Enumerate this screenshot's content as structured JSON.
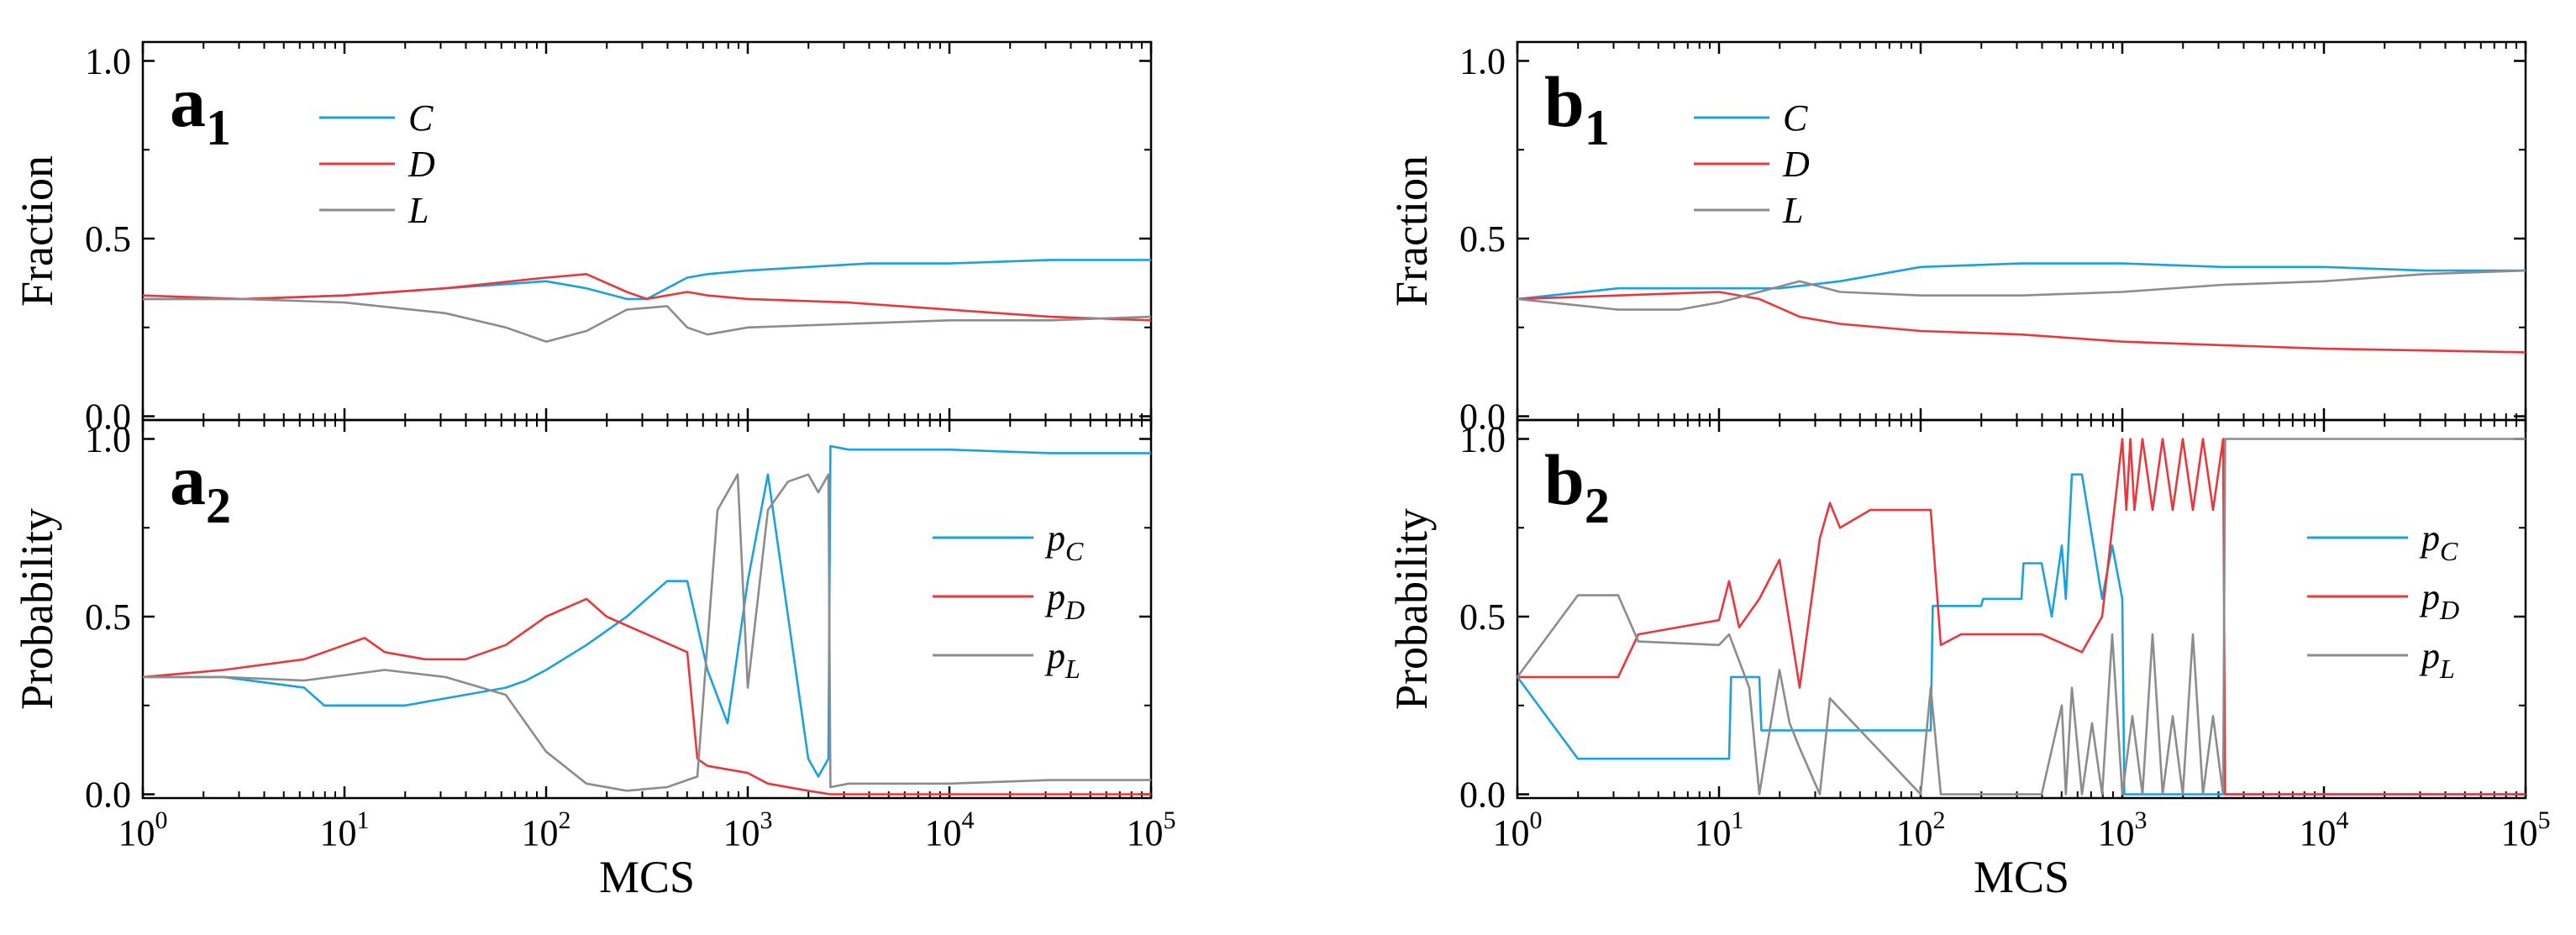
{
  "colors": {
    "C": "#1ba1e2",
    "D": "#e8383d",
    "L": "#8c8c8c"
  },
  "chart_data": [
    {
      "id": "a1",
      "type": "line",
      "panel_label": "a",
      "panel_sub": "1",
      "ylabel": "Fraction",
      "xlabel": "",
      "xscale": "log10",
      "xlim_exp": [
        0,
        5
      ],
      "ylim": [
        0,
        1
      ],
      "yticks": [
        "0.0",
        "0.5",
        "1.0"
      ],
      "legend": "top-left",
      "series": [
        {
          "key": "C",
          "name": "C",
          "x_exp": [
            0,
            0.5,
            1,
            1.5,
            2,
            2.2,
            2.4,
            2.5,
            2.6,
            2.7,
            2.8,
            3,
            3.3,
            3.6,
            4,
            4.5,
            5
          ],
          "values": [
            0.33,
            0.33,
            0.34,
            0.36,
            0.38,
            0.36,
            0.33,
            0.33,
            0.36,
            0.39,
            0.4,
            0.41,
            0.42,
            0.43,
            0.43,
            0.44,
            0.44
          ]
        },
        {
          "key": "D",
          "name": "D",
          "x_exp": [
            0,
            0.5,
            1,
            1.5,
            2,
            2.2,
            2.4,
            2.5,
            2.6,
            2.7,
            2.8,
            3,
            3.5,
            4,
            4.5,
            5
          ],
          "values": [
            0.34,
            0.33,
            0.34,
            0.36,
            0.39,
            0.4,
            0.35,
            0.33,
            0.34,
            0.35,
            0.34,
            0.33,
            0.32,
            0.3,
            0.28,
            0.27
          ]
        },
        {
          "key": "L",
          "name": "L",
          "x_exp": [
            0,
            0.5,
            1,
            1.5,
            1.8,
            2,
            2.2,
            2.4,
            2.6,
            2.7,
            2.8,
            3,
            3.5,
            4,
            4.5,
            5
          ],
          "values": [
            0.33,
            0.33,
            0.32,
            0.29,
            0.25,
            0.21,
            0.24,
            0.3,
            0.31,
            0.25,
            0.23,
            0.25,
            0.26,
            0.27,
            0.27,
            0.28
          ]
        }
      ]
    },
    {
      "id": "a2",
      "type": "line",
      "panel_label": "a",
      "panel_sub": "2",
      "ylabel": "Probability",
      "xlabel": "MCS",
      "xscale": "log10",
      "xlim_exp": [
        0,
        5
      ],
      "ylim": [
        0,
        1
      ],
      "yticks": [
        "0.0",
        "0.5",
        "1.0"
      ],
      "xtick_base": "10",
      "xtick_exps": [
        "0",
        "1",
        "2",
        "3",
        "4",
        "5"
      ],
      "legend": "right",
      "series": [
        {
          "key": "C",
          "name": "p",
          "sub": "C",
          "x_exp": [
            0,
            0.4,
            0.8,
            0.9,
            1.3,
            1.6,
            1.8,
            1.9,
            2,
            2.2,
            2.4,
            2.6,
            2.7,
            2.8,
            2.9,
            3,
            3.1,
            3.2,
            3.3,
            3.35,
            3.4,
            3.41,
            3.5,
            4,
            4.5,
            5
          ],
          "values": [
            0.33,
            0.33,
            0.3,
            0.25,
            0.25,
            0.28,
            0.3,
            0.32,
            0.35,
            0.42,
            0.5,
            0.6,
            0.6,
            0.35,
            0.2,
            0.6,
            0.9,
            0.5,
            0.1,
            0.05,
            0.1,
            0.98,
            0.97,
            0.97,
            0.96,
            0.96
          ]
        },
        {
          "key": "D",
          "name": "p",
          "sub": "D",
          "x_exp": [
            0,
            0.4,
            0.8,
            1,
            1.1,
            1.2,
            1.4,
            1.6,
            1.8,
            2,
            2.2,
            2.3,
            2.5,
            2.7,
            2.75,
            2.8,
            3,
            3.1,
            3.3,
            3.41,
            5
          ],
          "values": [
            0.33,
            0.35,
            0.38,
            0.42,
            0.44,
            0.4,
            0.38,
            0.38,
            0.42,
            0.5,
            0.55,
            0.5,
            0.45,
            0.4,
            0.1,
            0.08,
            0.06,
            0.03,
            0.01,
            0,
            0
          ]
        },
        {
          "key": "L",
          "name": "p",
          "sub": "L",
          "x_exp": [
            0,
            0.4,
            0.8,
            1.2,
            1.5,
            1.8,
            2,
            2.2,
            2.4,
            2.6,
            2.75,
            2.85,
            2.95,
            3,
            3.1,
            3.2,
            3.3,
            3.35,
            3.4,
            3.41,
            3.5,
            4,
            4.5,
            5
          ],
          "values": [
            0.33,
            0.33,
            0.32,
            0.35,
            0.33,
            0.28,
            0.12,
            0.03,
            0.01,
            0.02,
            0.05,
            0.8,
            0.9,
            0.3,
            0.8,
            0.88,
            0.9,
            0.85,
            0.9,
            0.02,
            0.03,
            0.03,
            0.04,
            0.04
          ]
        }
      ]
    },
    {
      "id": "b1",
      "type": "line",
      "panel_label": "b",
      "panel_sub": "1",
      "ylabel": "Fraction",
      "xlabel": "",
      "xscale": "log10",
      "xlim_exp": [
        0,
        5
      ],
      "ylim": [
        0,
        1
      ],
      "yticks": [
        "0.0",
        "0.5",
        "1.0"
      ],
      "legend": "top-left",
      "series": [
        {
          "key": "C",
          "name": "C",
          "x_exp": [
            0,
            0.5,
            1,
            1.3,
            1.6,
            2,
            2.5,
            3,
            3.5,
            4,
            4.5,
            5
          ],
          "values": [
            0.33,
            0.36,
            0.36,
            0.36,
            0.38,
            0.42,
            0.43,
            0.43,
            0.42,
            0.42,
            0.41,
            0.41
          ]
        },
        {
          "key": "D",
          "name": "D",
          "x_exp": [
            0,
            0.5,
            1,
            1.2,
            1.4,
            1.6,
            2,
            2.5,
            3,
            3.5,
            4,
            4.5,
            5
          ],
          "values": [
            0.33,
            0.34,
            0.35,
            0.33,
            0.28,
            0.26,
            0.24,
            0.23,
            0.21,
            0.2,
            0.19,
            0.185,
            0.18
          ]
        },
        {
          "key": "L",
          "name": "L",
          "x_exp": [
            0,
            0.5,
            0.8,
            1,
            1.2,
            1.4,
            1.6,
            2,
            2.5,
            3,
            3.5,
            4,
            4.5,
            5
          ],
          "values": [
            0.33,
            0.3,
            0.3,
            0.32,
            0.35,
            0.38,
            0.35,
            0.34,
            0.34,
            0.35,
            0.37,
            0.38,
            0.4,
            0.41
          ]
        }
      ]
    },
    {
      "id": "b2",
      "type": "line",
      "panel_label": "b",
      "panel_sub": "2",
      "ylabel": "Probability",
      "xlabel": "MCS",
      "xscale": "log10",
      "xlim_exp": [
        0,
        5
      ],
      "ylim": [
        0,
        1
      ],
      "yticks": [
        "0.0",
        "0.5",
        "1.0"
      ],
      "xtick_base": "10",
      "xtick_exps": [
        "0",
        "1",
        "2",
        "3",
        "4",
        "5"
      ],
      "legend": "right",
      "series": [
        {
          "key": "C",
          "name": "p",
          "sub": "C",
          "x_exp": [
            0,
            0.3,
            1.05,
            1.06,
            1.2,
            1.21,
            1.45,
            1.46,
            2.05,
            2.06,
            2.3,
            2.31,
            2.5,
            2.51,
            2.6,
            2.65,
            2.7,
            2.72,
            2.75,
            2.8,
            2.9,
            2.95,
            3,
            3.01,
            5
          ],
          "values": [
            0.33,
            0.1,
            0.1,
            0.33,
            0.33,
            0.18,
            0.18,
            0.18,
            0.18,
            0.53,
            0.53,
            0.55,
            0.55,
            0.65,
            0.65,
            0.5,
            0.7,
            0.55,
            0.9,
            0.9,
            0.55,
            0.7,
            0.55,
            0,
            0
          ]
        },
        {
          "key": "D",
          "name": "p",
          "sub": "D",
          "x_exp": [
            0,
            0.5,
            0.6,
            1,
            1.05,
            1.1,
            1.2,
            1.3,
            1.4,
            1.5,
            1.55,
            1.6,
            1.75,
            2,
            2.05,
            2.1,
            2.2,
            2.6,
            2.8,
            2.9,
            3,
            3.02,
            3.04,
            3.06,
            3.1,
            3.15,
            3.2,
            3.25,
            3.3,
            3.35,
            3.4,
            3.45,
            3.5,
            3.51,
            5
          ],
          "values": [
            0.33,
            0.33,
            0.45,
            0.49,
            0.6,
            0.47,
            0.55,
            0.66,
            0.3,
            0.72,
            0.82,
            0.75,
            0.8,
            0.8,
            0.8,
            0.42,
            0.45,
            0.45,
            0.4,
            0.5,
            1,
            0.8,
            1,
            0.8,
            1,
            0.8,
            1,
            0.8,
            1,
            0.8,
            1,
            0.8,
            1,
            0,
            0
          ]
        },
        {
          "key": "L",
          "name": "p",
          "sub": "L",
          "x_exp": [
            0,
            0.3,
            0.5,
            0.6,
            1,
            1.05,
            1.15,
            1.2,
            1.3,
            1.35,
            1.4,
            1.5,
            1.55,
            2,
            2.05,
            2.1,
            2.6,
            2.7,
            2.72,
            2.75,
            2.8,
            2.85,
            2.9,
            2.95,
            3,
            3.05,
            3.1,
            3.15,
            3.2,
            3.25,
            3.3,
            3.35,
            3.4,
            3.45,
            3.5,
            3.51,
            5
          ],
          "values": [
            0.33,
            0.56,
            0.56,
            0.43,
            0.42,
            0.45,
            0.3,
            0,
            0.35,
            0.2,
            0.13,
            0,
            0.27,
            0,
            0.3,
            0,
            0,
            0.25,
            0,
            0.3,
            0,
            0.2,
            0,
            0.45,
            0,
            0.22,
            0,
            0.45,
            0,
            0.22,
            0,
            0.45,
            0,
            0.22,
            0,
            1,
            1
          ]
        }
      ]
    }
  ]
}
